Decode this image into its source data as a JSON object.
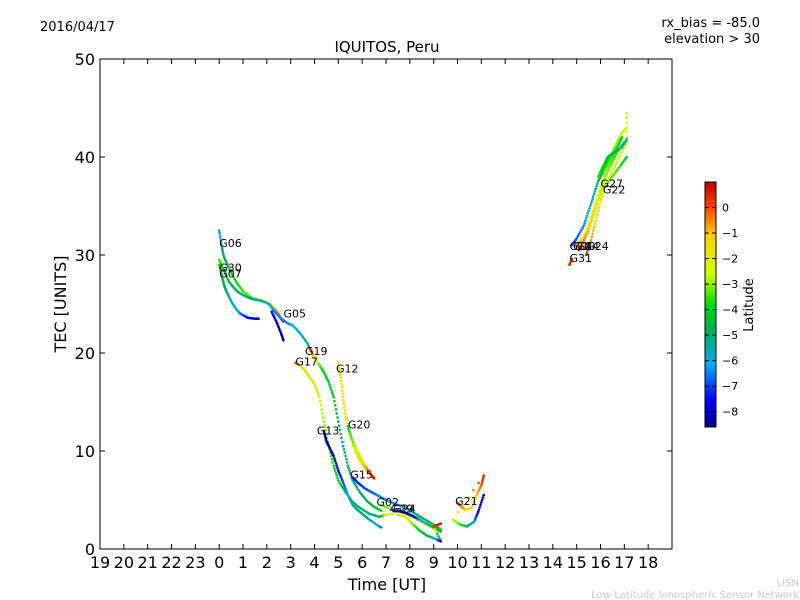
{
  "header": {
    "date": "2016/04/17",
    "rx_bias": "rx_bias = -85.0",
    "elevation": "elevation > 30"
  },
  "footer": {
    "org_short": "LISN",
    "org_long": "Low-Latitude Ionospheric Sensor Network"
  },
  "chart_data": {
    "type": "scatter",
    "title": "IQUITOS, Peru",
    "xlabel": "Time [UT]",
    "ylabel": "TEC [UNITS]",
    "xlim": [
      -5,
      19
    ],
    "ylim": [
      0,
      50
    ],
    "x_tick_labels": [
      "19",
      "20",
      "21",
      "22",
      "23",
      "0",
      "1",
      "2",
      "3",
      "4",
      "5",
      "6",
      "7",
      "8",
      "9",
      "10",
      "11",
      "12",
      "13",
      "14",
      "15",
      "16",
      "17",
      "18"
    ],
    "y_ticks": [
      0,
      10,
      20,
      30,
      40,
      50
    ],
    "grid": false,
    "colorbar": {
      "label": "Latitude",
      "range": [
        -8.6,
        1.0
      ],
      "ticks": [
        0,
        -1,
        -2,
        -3,
        -4,
        -5,
        -6,
        -7,
        -8
      ],
      "tick_labels": [
        "0",
        "−1",
        "−2",
        "−3",
        "−4",
        "−5",
        "−6",
        "−7",
        "−8"
      ]
    },
    "series": [
      {
        "name": "G06",
        "label_at": [
          0.0,
          30.8
        ],
        "points": [
          [
            0.0,
            32.5,
            -6.5
          ],
          [
            0.1,
            31.0,
            -5.5
          ],
          [
            0.2,
            29.8,
            -5.0
          ],
          [
            0.4,
            28.7,
            -4.5
          ],
          [
            0.7,
            27.3,
            -3.8
          ],
          [
            1.0,
            26.3,
            -3.5
          ],
          [
            1.4,
            25.6,
            -3.2
          ],
          [
            1.7,
            25.4,
            -3.0
          ],
          [
            2.0,
            25.2,
            -2.5
          ],
          [
            2.2,
            24.9,
            -1.5
          ],
          [
            2.4,
            24.3,
            -0.5
          ],
          [
            2.6,
            23.5,
            0.3
          ],
          [
            2.7,
            23.2,
            0.6
          ]
        ]
      },
      {
        "name": "G30",
        "label_at": [
          0.0,
          28.3
        ],
        "points": [
          [
            0.0,
            29.5,
            -3.5
          ],
          [
            0.2,
            28.5,
            -4.0
          ],
          [
            0.4,
            27.3,
            -4.5
          ],
          [
            0.6,
            26.7,
            -4.8
          ],
          [
            0.8,
            26.2,
            -5.0
          ],
          [
            1.1,
            25.8,
            -5.0
          ],
          [
            1.4,
            25.5,
            -5.2
          ],
          [
            1.8,
            25.3,
            -5.3
          ],
          [
            2.1,
            25.0,
            -6.0
          ],
          [
            2.3,
            24.3,
            -6.5
          ],
          [
            2.6,
            23.5,
            -6.6
          ],
          [
            2.9,
            23.0,
            -6.4
          ],
          [
            3.1,
            22.8,
            -6.2
          ],
          [
            3.4,
            22.0,
            -5.8
          ],
          [
            3.7,
            21.0,
            -5.5
          ],
          [
            3.9,
            20.0,
            -5.0
          ]
        ]
      },
      {
        "name": "G07",
        "label_at": [
          0.0,
          27.7
        ],
        "points": [
          [
            0.0,
            29.0,
            -4.0
          ],
          [
            0.1,
            28.0,
            -4.3
          ],
          [
            0.2,
            27.0,
            -4.7
          ],
          [
            0.3,
            26.3,
            -5.0
          ],
          [
            0.5,
            25.3,
            -5.5
          ],
          [
            0.7,
            24.5,
            -6.0
          ],
          [
            0.9,
            24.0,
            -6.6
          ],
          [
            1.2,
            23.6,
            -7.5
          ],
          [
            1.5,
            23.5,
            -8.0
          ],
          [
            1.65,
            23.5,
            -8.2
          ]
        ]
      },
      {
        "name": "G05",
        "label_at": [
          2.7,
          23.6
        ],
        "points": [
          [
            2.2,
            24.2,
            -7.5
          ],
          [
            2.4,
            23.2,
            -8.0
          ],
          [
            2.6,
            22.0,
            -8.3
          ],
          [
            2.7,
            21.3,
            -8.4
          ]
        ]
      },
      {
        "name": "G19",
        "label_at": [
          3.6,
          19.8
        ],
        "points": [
          [
            3.8,
            20.5,
            0.5
          ],
          [
            4.0,
            19.5,
            -1.5
          ],
          [
            4.2,
            18.8,
            -3.2
          ],
          [
            4.4,
            18.0,
            -4.0
          ],
          [
            4.6,
            17.0,
            -4.2
          ],
          [
            4.8,
            15.5,
            -4.5
          ],
          [
            5.0,
            13.0,
            -4.8
          ],
          [
            5.2,
            10.5,
            -5.0
          ],
          [
            5.4,
            8.5,
            -5.0
          ],
          [
            5.6,
            7.0,
            -5.0
          ],
          [
            5.9,
            5.8,
            -5.0
          ],
          [
            6.2,
            4.9,
            -4.8
          ],
          [
            6.5,
            4.3,
            -4.5
          ],
          [
            6.8,
            3.9,
            -4.0
          ]
        ]
      },
      {
        "name": "G17",
        "label_at": [
          3.2,
          18.7
        ],
        "points": [
          [
            3.2,
            19.0,
            0.2
          ],
          [
            3.4,
            18.7,
            -1.0
          ],
          [
            3.6,
            18.2,
            -2.0
          ],
          [
            3.8,
            17.5,
            -2.2
          ],
          [
            4.0,
            16.8,
            -2.3
          ],
          [
            4.2,
            15.5,
            -2.6
          ],
          [
            4.4,
            13.0,
            -3.0
          ],
          [
            4.6,
            10.5,
            -3.5
          ],
          [
            4.8,
            8.5,
            -3.8
          ],
          [
            5.0,
            7.0,
            -4.2
          ],
          [
            5.3,
            5.8,
            -4.5
          ],
          [
            5.6,
            4.8,
            -4.8
          ],
          [
            5.9,
            4.2,
            -5.0
          ],
          [
            6.3,
            3.6,
            -5.2
          ],
          [
            6.7,
            3.3,
            -5.0
          ],
          [
            7.0,
            3.5,
            -2.5
          ],
          [
            7.3,
            3.6,
            -1.5
          ]
        ]
      },
      {
        "name": "G12",
        "label_at": [
          4.9,
          18.0
        ],
        "points": [
          [
            5.0,
            19.0,
            -1.6
          ],
          [
            5.1,
            17.5,
            -1.7
          ],
          [
            5.2,
            15.5,
            -1.8
          ],
          [
            5.3,
            13.5,
            -2.0
          ],
          [
            5.5,
            11.5,
            -2.0
          ],
          [
            5.7,
            10.0,
            -2.1
          ],
          [
            5.9,
            9.0,
            -2.2
          ],
          [
            6.2,
            8.0,
            -1.8
          ],
          [
            6.5,
            7.3,
            -1.5
          ]
        ]
      },
      {
        "name": "G20",
        "label_at": [
          5.4,
          12.3
        ],
        "points": [
          [
            5.4,
            12.5,
            -4.0
          ],
          [
            5.6,
            11.0,
            -3.2
          ],
          [
            5.8,
            10.0,
            -2.5
          ],
          [
            6.0,
            9.0,
            -1.5
          ],
          [
            6.2,
            8.2,
            -0.5
          ],
          [
            6.4,
            7.5,
            0.3
          ],
          [
            6.5,
            7.2,
            0.6
          ]
        ]
      },
      {
        "name": "G13",
        "label_at": [
          4.1,
          11.7
        ],
        "points": [
          [
            4.4,
            12.0,
            -8.2
          ],
          [
            4.5,
            11.0,
            -8.3
          ],
          [
            4.6,
            10.5,
            -8.3
          ],
          [
            4.8,
            9.5,
            -8.0
          ],
          [
            5.0,
            8.0,
            -7.5
          ],
          [
            5.2,
            6.8,
            -7.0
          ],
          [
            5.4,
            5.5,
            -6.2
          ],
          [
            5.6,
            4.5,
            -5.5
          ],
          [
            5.8,
            4.0,
            -5.0
          ],
          [
            6.0,
            3.6,
            -5.0
          ],
          [
            6.3,
            3.0,
            -5.5
          ],
          [
            6.6,
            2.5,
            -6.0
          ],
          [
            6.8,
            2.2,
            -6.5
          ]
        ]
      },
      {
        "name": "G15",
        "label_at": [
          5.5,
          7.2
        ],
        "points": [
          [
            5.6,
            7.3,
            -7.5
          ],
          [
            5.8,
            6.8,
            -7.3
          ],
          [
            6.1,
            6.2,
            -7.0
          ],
          [
            6.4,
            5.8,
            -6.8
          ],
          [
            6.7,
            5.4,
            -6.6
          ],
          [
            7.0,
            5.0,
            -6.5
          ],
          [
            7.3,
            4.7,
            -6.3
          ],
          [
            7.7,
            4.3,
            -6.0
          ],
          [
            8.1,
            3.8,
            -5.5
          ],
          [
            8.5,
            3.2,
            -5.0
          ],
          [
            9.0,
            2.5,
            -4.5
          ],
          [
            9.3,
            2.0,
            -4.0
          ]
        ]
      },
      {
        "name": "G02",
        "label_at": [
          6.6,
          4.4
        ],
        "points": [
          [
            6.8,
            4.5,
            -3.5
          ],
          [
            7.1,
            4.2,
            -3.0
          ],
          [
            7.5,
            3.9,
            -2.0
          ],
          [
            7.9,
            3.5,
            -1.5
          ],
          [
            8.3,
            3.0,
            -1.6
          ],
          [
            8.7,
            2.5,
            -2.5
          ],
          [
            9.1,
            2.0,
            -3.5
          ],
          [
            9.3,
            1.8,
            -4.2
          ]
        ]
      },
      {
        "name": "G29",
        "label_at": [
          7.2,
          3.7
        ],
        "points": [
          [
            7.2,
            4.0,
            -6.5
          ],
          [
            7.5,
            3.9,
            -7.5
          ],
          [
            7.8,
            3.7,
            -8.2
          ],
          [
            8.1,
            3.4,
            -7.8
          ],
          [
            8.4,
            3.0,
            -6.5
          ],
          [
            8.7,
            2.6,
            -5.5
          ],
          [
            9.0,
            2.2,
            -4.8
          ],
          [
            9.3,
            1.8,
            -4.5
          ]
        ]
      },
      {
        "name": "G24",
        "label_at": [
          7.3,
          3.7
        ],
        "points": [
          [
            7.5,
            3.5,
            -3.0
          ],
          [
            7.8,
            3.3,
            -2.0
          ],
          [
            8.1,
            2.6,
            -3.0
          ],
          [
            8.4,
            1.9,
            -4.0
          ],
          [
            8.7,
            1.4,
            -4.5
          ],
          [
            9.0,
            1.1,
            -5.5
          ],
          [
            9.2,
            0.9,
            -7.0
          ],
          [
            9.3,
            0.8,
            -8.0
          ],
          [
            9.0,
            2.3,
            0.3
          ],
          [
            9.3,
            2.6,
            0.7
          ]
        ]
      },
      {
        "name": "G21",
        "label_at": [
          9.9,
          4.5
        ],
        "points": [
          [
            10.0,
            4.7,
            0.5
          ],
          [
            10.3,
            4.0,
            -1.0
          ],
          [
            10.6,
            4.2,
            -1.5
          ],
          [
            10.8,
            5.5,
            -1.0
          ],
          [
            11.0,
            6.5,
            -0.2
          ],
          [
            11.1,
            7.5,
            0.5
          ],
          [
            9.8,
            3.0,
            -2.5
          ],
          [
            10.1,
            2.5,
            -3.5
          ],
          [
            10.4,
            2.3,
            -4.5
          ],
          [
            10.7,
            2.8,
            -6.5
          ],
          [
            10.9,
            4.0,
            -8.0
          ],
          [
            11.1,
            5.5,
            -8.5
          ]
        ]
      },
      {
        "name": "G18",
        "label_at": [
          14.7,
          30.5
        ],
        "points": [
          [
            14.8,
            31.0,
            -7.0
          ],
          [
            15.0,
            31.7,
            -6.8
          ],
          [
            15.3,
            33.0,
            -6.5
          ],
          [
            15.5,
            34.5,
            -6.0
          ],
          [
            15.7,
            36.0,
            -5.5
          ],
          [
            15.9,
            37.5,
            -5.0
          ],
          [
            16.1,
            38.5,
            -4.3
          ],
          [
            16.3,
            39.5,
            -3.8
          ],
          [
            16.5,
            40.5,
            -3.3
          ],
          [
            16.7,
            41.5,
            -2.9
          ],
          [
            16.9,
            42.5,
            -2.7
          ],
          [
            17.1,
            43.0,
            -2.6
          ]
        ]
      },
      {
        "name": "G10",
        "label_at": [
          14.85,
          30.5
        ],
        "points": [
          [
            15.0,
            31.0,
            -0.5
          ],
          [
            15.3,
            31.8,
            -1.5
          ],
          [
            15.5,
            33.0,
            -2.0
          ],
          [
            15.7,
            34.5,
            -2.2
          ],
          [
            15.9,
            36.0,
            -2.5
          ],
          [
            16.1,
            37.5,
            -2.8
          ],
          [
            16.3,
            39.0,
            -3.2
          ],
          [
            16.5,
            40.0,
            -3.5
          ],
          [
            16.7,
            41.0,
            -3.8
          ],
          [
            16.9,
            42.0,
            -4.0
          ]
        ]
      },
      {
        "name": "G14",
        "label_at": [
          15.0,
          30.5
        ],
        "points": [
          [
            15.1,
            30.5,
            0.5
          ],
          [
            15.3,
            31.5,
            -0.5
          ],
          [
            15.5,
            32.5,
            -1.0
          ],
          [
            15.7,
            34.0,
            -1.5
          ],
          [
            15.9,
            35.5,
            -2.0
          ],
          [
            16.1,
            37.0,
            -2.5
          ],
          [
            16.3,
            38.5,
            -3.0
          ],
          [
            16.5,
            39.5,
            -3.3
          ],
          [
            16.7,
            40.5,
            -3.5
          ],
          [
            17.0,
            41.5,
            -4.0
          ]
        ]
      },
      {
        "name": "G24",
        "label_at": [
          15.4,
          30.5
        ],
        "points": [
          [
            15.4,
            30.0,
            0.5
          ],
          [
            15.6,
            31.5,
            -0.5
          ],
          [
            15.8,
            33.5,
            -1.2
          ],
          [
            16.0,
            35.5,
            -1.8
          ],
          [
            16.2,
            37.0,
            -2.0
          ],
          [
            16.5,
            38.5,
            -2.2
          ],
          [
            16.8,
            40.0,
            -2.4
          ],
          [
            17.1,
            41.5,
            -2.5
          ],
          [
            17.1,
            44.5,
            -2.6
          ]
        ]
      },
      {
        "name": "G31",
        "label_at": [
          14.7,
          29.3
        ],
        "points": [
          [
            14.7,
            29.0,
            0.5
          ],
          [
            14.8,
            29.6,
            0.2
          ]
        ]
      },
      {
        "name": "G27",
        "label_at": [
          16.0,
          36.9
        ],
        "points": [
          [
            15.9,
            38.0,
            -3.5
          ],
          [
            16.1,
            39.0,
            -4.0
          ],
          [
            16.3,
            40.0,
            -4.5
          ],
          [
            16.6,
            40.5,
            -5.0
          ],
          [
            16.9,
            41.0,
            -5.2
          ],
          [
            17.1,
            41.8,
            -5.0
          ]
        ]
      },
      {
        "name": "G22",
        "label_at": [
          16.1,
          36.3
        ],
        "points": [
          [
            16.2,
            37.0,
            -3.0
          ],
          [
            16.5,
            38.0,
            -3.3
          ],
          [
            16.8,
            39.0,
            -3.6
          ],
          [
            17.1,
            40.0,
            -4.0
          ]
        ]
      }
    ]
  }
}
